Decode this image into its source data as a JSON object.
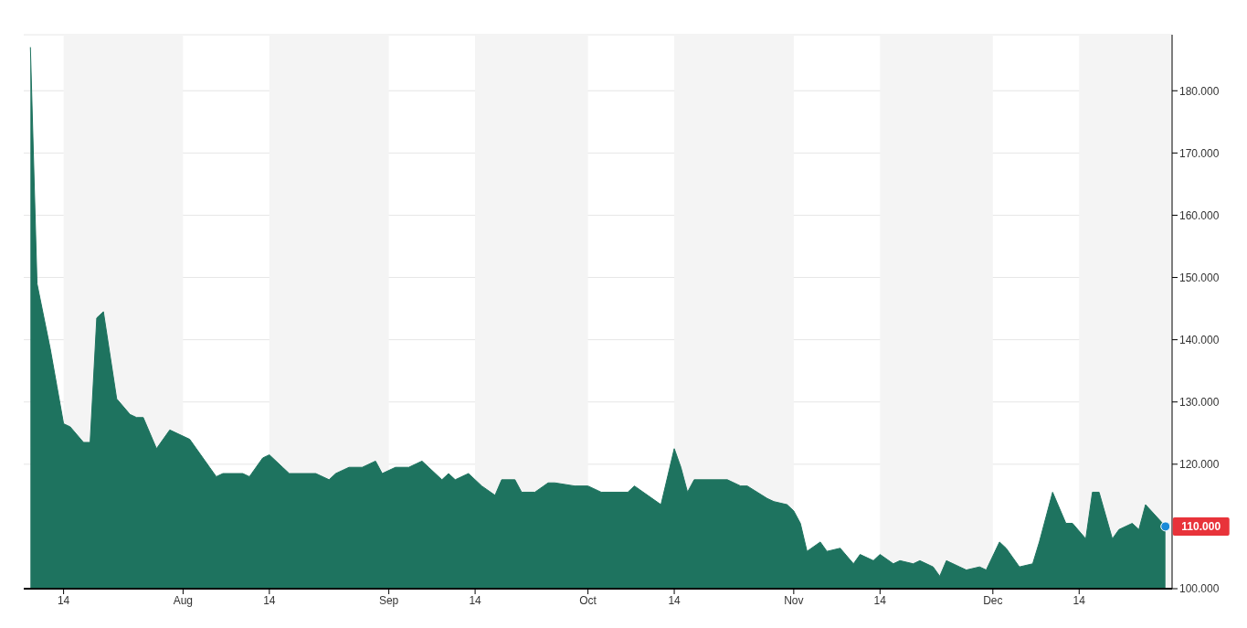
{
  "chart_data": {
    "type": "area",
    "color": "#1e735f",
    "x": [
      "--07-09",
      "--07-10",
      "--07-12",
      "--07-13",
      "--07-14",
      "--07-15",
      "--07-17",
      "--07-18",
      "--07-19",
      "--07-20",
      "--07-22",
      "--07-24",
      "--07-25",
      "--07-26",
      "--07-28",
      "--07-30",
      "--08-02",
      "--08-03",
      "--08-05",
      "--08-06",
      "--08-07",
      "--08-10",
      "--08-11",
      "--08-13",
      "--08-14",
      "--08-16",
      "--08-17",
      "--08-21",
      "--08-23",
      "--08-24",
      "--08-26",
      "--08-28",
      "--08-30",
      "--08-31",
      "--09-02",
      "--09-04",
      "--09-06",
      "--09-07",
      "--09-09",
      "--09-10",
      "--09-11",
      "--09-13",
      "--09-15",
      "--09-17",
      "--09-18",
      "--09-20",
      "--09-21",
      "--09-23",
      "--09-25",
      "--09-26",
      "--09-29",
      "--10-01",
      "--10-03",
      "--10-07",
      "--10-08",
      "--10-12",
      "--10-14",
      "--10-15",
      "--10-16",
      "--10-17",
      "--10-22",
      "--10-24",
      "--10-25",
      "--10-28",
      "--10-29",
      "--10-31",
      "--11-01",
      "--11-02",
      "--11-03",
      "--11-05",
      "--11-06",
      "--11-08",
      "--11-10",
      "--11-11",
      "--11-13",
      "--11-14",
      "--11-16",
      "--11-17",
      "--11-19",
      "--11-20",
      "--11-22",
      "--11-23",
      "--11-24",
      "--11-26",
      "--11-27",
      "--11-29",
      "--11-30",
      "--12-02",
      "--12-03",
      "--12-04",
      "--12-05",
      "--12-07",
      "--12-08",
      "--12-10",
      "--12-12",
      "--12-13",
      "--12-15",
      "--12-16",
      "--12-17",
      "--12-19",
      "--12-20",
      "--12-22",
      "--12-23",
      "--12-24",
      "--12-27"
    ],
    "values": [
      187,
      149,
      138.5,
      132.5,
      126.5,
      126,
      123.5,
      123.5,
      143.5,
      144.5,
      130.5,
      128,
      127.5,
      127.5,
      122.5,
      125.5,
      124,
      122.5,
      119.5,
      118,
      118.5,
      118.5,
      118,
      121,
      121.5,
      119.5,
      118.5,
      118.5,
      117.5,
      118.5,
      119.5,
      119.5,
      120.5,
      118.5,
      119.5,
      119.5,
      120.5,
      119.5,
      117.5,
      118.5,
      117.5,
      118.5,
      116.5,
      115,
      117.5,
      117.5,
      115.5,
      115.5,
      117,
      117,
      116.5,
      116.5,
      115.5,
      115.5,
      116.5,
      113.5,
      122.5,
      119.5,
      115.5,
      117.5,
      117.5,
      116.5,
      116.5,
      114.5,
      114,
      113.5,
      112.5,
      110.5,
      106,
      107.5,
      106,
      106.5,
      104,
      105.5,
      104.5,
      105.5,
      104,
      104.5,
      104,
      104.5,
      103.5,
      102,
      104.5,
      103.5,
      103,
      103.5,
      103,
      107.5,
      106.5,
      105,
      103.5,
      104,
      107.5,
      115.5,
      110.5,
      110.5,
      108,
      115.5,
      115.5,
      108,
      109.5,
      110.5,
      109.5,
      113.5,
      110
    ],
    "xlim": [
      "--07-08",
      "--12-28"
    ],
    "xticks": [
      {
        "value": "--07-14",
        "label": "14"
      },
      {
        "value": "--08-01",
        "label": "Aug"
      },
      {
        "value": "--08-14",
        "label": "14"
      },
      {
        "value": "--09-01",
        "label": "Sep"
      },
      {
        "value": "--09-14",
        "label": "14"
      },
      {
        "value": "--10-01",
        "label": "Oct"
      },
      {
        "value": "--10-14",
        "label": "14"
      },
      {
        "value": "--11-01",
        "label": "Nov"
      },
      {
        "value": "--11-14",
        "label": "14"
      },
      {
        "value": "--12-01",
        "label": "Dec"
      },
      {
        "value": "--12-14",
        "label": "14"
      }
    ],
    "ylim": [
      100,
      189
    ],
    "yticks": [
      {
        "value": 100,
        "label": "100.000"
      },
      {
        "value": 120,
        "label": "120.000"
      },
      {
        "value": 130,
        "label": "130.000"
      },
      {
        "value": 140,
        "label": "140.000"
      },
      {
        "value": 150,
        "label": "150.000"
      },
      {
        "value": 160,
        "label": "160.000"
      },
      {
        "value": 170,
        "label": "170.000"
      },
      {
        "value": 180,
        "label": "180.000"
      }
    ],
    "grid": "y",
    "bands": [
      {
        "axis": "x",
        "from": "--07-14",
        "to": "--08-01",
        "color": "#f4f4f4"
      },
      {
        "axis": "x",
        "from": "--08-14",
        "to": "--09-01",
        "color": "#f4f4f4"
      },
      {
        "axis": "x",
        "from": "--09-14",
        "to": "--10-01",
        "color": "#f4f4f4"
      },
      {
        "axis": "x",
        "from": "--10-14",
        "to": "--11-01",
        "color": "#f4f4f4"
      },
      {
        "axis": "x",
        "from": "--11-14",
        "to": "--12-01",
        "color": "#f4f4f4"
      },
      {
        "axis": "x",
        "from": "--12-14",
        "to": "--12-28",
        "color": "#f4f4f4"
      }
    ],
    "annotations": [
      {
        "text": "110.000",
        "x": "--12-27",
        "y": 110
      }
    ]
  }
}
